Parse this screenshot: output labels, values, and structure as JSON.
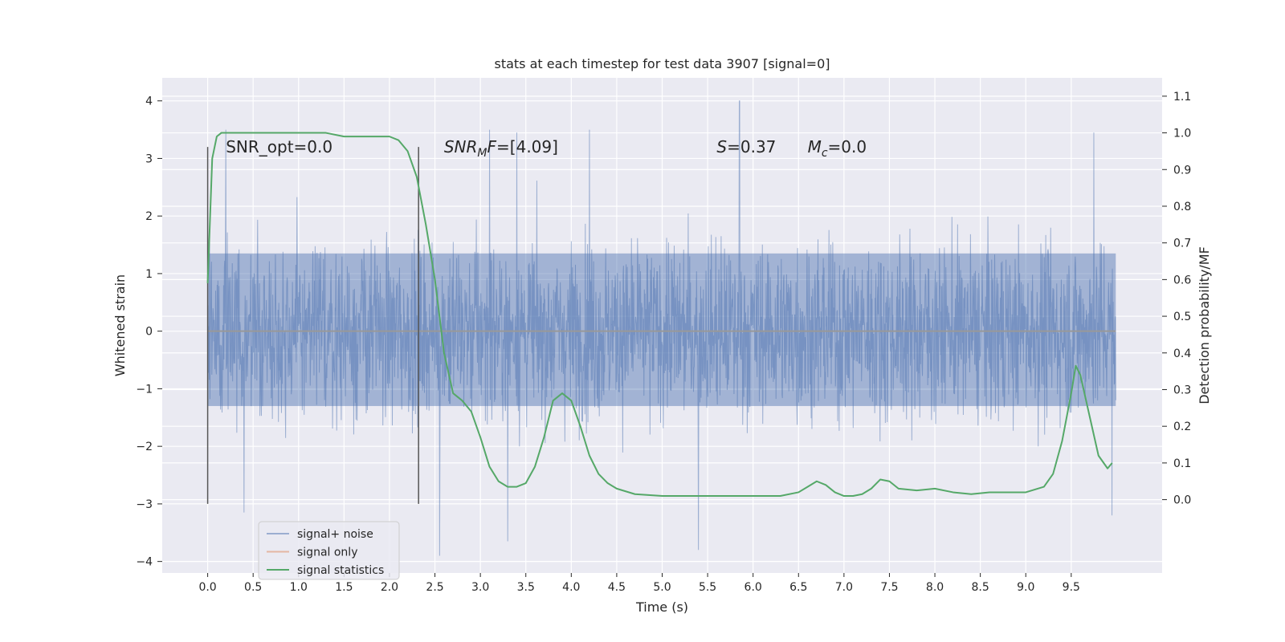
{
  "chart_data": {
    "type": "line",
    "title": "stats at each timestep for test data 3907 [signal=0]",
    "xlabel": "Time (s)",
    "ylabel": "Whitened strain",
    "y2label": "Detection probability/MF",
    "xlim": [
      -0.5,
      10.5
    ],
    "ylim": [
      -4.2,
      4.4
    ],
    "y2lim": [
      -0.2,
      1.15
    ],
    "xticks": [
      0.0,
      0.5,
      1.0,
      1.5,
      2.0,
      2.5,
      3.0,
      3.5,
      4.0,
      4.5,
      5.0,
      5.5,
      6.0,
      6.5,
      7.0,
      7.5,
      8.0,
      8.5,
      9.0,
      9.5
    ],
    "xtick_labels": [
      "0.0",
      "0.5",
      "1.0",
      "1.5",
      "2.0",
      "2.5",
      "3.0",
      "3.5",
      "4.0",
      "4.5",
      "5.0",
      "5.5",
      "6.0",
      "6.5",
      "7.0",
      "7.5",
      "8.0",
      "8.5",
      "9.0",
      "9.5"
    ],
    "yticks": [
      -4,
      -3,
      -2,
      -1,
      0,
      1,
      2,
      3,
      4
    ],
    "ytick_labels": [
      "−4",
      "−3",
      "−2",
      "−1",
      "0",
      "1",
      "2",
      "3",
      "4"
    ],
    "y2ticks": [
      0.0,
      0.1,
      0.2,
      0.3,
      0.4,
      0.5,
      0.6,
      0.7,
      0.8,
      0.9,
      1.0,
      1.1
    ],
    "y2tick_labels": [
      "0.0",
      "0.1",
      "0.2",
      "0.3",
      "0.4",
      "0.5",
      "0.6",
      "0.7",
      "0.8",
      "0.9",
      "1.0",
      "1.1"
    ],
    "grid": true,
    "legend_position": "lower-left",
    "series": [
      {
        "name": "signal+ noise",
        "axis": "left",
        "color": "#4c72b0",
        "x_range": [
          0.0,
          9.99
        ],
        "approx_band": [
          -1.3,
          1.35
        ],
        "peaks": [
          {
            "x": 0.2,
            "y": 3.5
          },
          {
            "x": 3.1,
            "y": 3.5
          },
          {
            "x": 3.4,
            "y": 3.45
          },
          {
            "x": 4.2,
            "y": 3.5
          },
          {
            "x": 5.85,
            "y": 4.05
          },
          {
            "x": 9.75,
            "y": 3.45
          },
          {
            "x": 2.55,
            "y": -3.9
          },
          {
            "x": 3.3,
            "y": -3.65
          },
          {
            "x": 5.4,
            "y": -3.8
          },
          {
            "x": 0.4,
            "y": -3.15
          },
          {
            "x": 9.95,
            "y": -3.2
          }
        ]
      },
      {
        "name": "signal only",
        "axis": "left",
        "color": "#dd8452",
        "x": [
          0.0,
          9.99
        ],
        "y": [
          0.0,
          0.0
        ]
      },
      {
        "name": "signal statistics",
        "axis": "right",
        "color": "#55a868",
        "x": [
          0.0,
          0.05,
          0.1,
          0.15,
          0.2,
          0.3,
          0.5,
          0.8,
          1.0,
          1.3,
          1.5,
          1.7,
          1.9,
          2.0,
          2.1,
          2.2,
          2.3,
          2.4,
          2.5,
          2.6,
          2.7,
          2.8,
          2.9,
          3.0,
          3.1,
          3.2,
          3.3,
          3.4,
          3.5,
          3.6,
          3.7,
          3.8,
          3.9,
          4.0,
          4.1,
          4.2,
          4.3,
          4.4,
          4.5,
          4.7,
          5.0,
          5.5,
          6.0,
          6.3,
          6.5,
          6.6,
          6.7,
          6.8,
          6.9,
          7.0,
          7.1,
          7.2,
          7.3,
          7.4,
          7.5,
          7.6,
          7.8,
          8.0,
          8.2,
          8.4,
          8.6,
          8.8,
          9.0,
          9.2,
          9.3,
          9.4,
          9.5,
          9.55,
          9.6,
          9.7,
          9.8,
          9.9,
          9.95
        ],
        "y": [
          0.59,
          0.93,
          0.99,
          1.0,
          1.0,
          1.0,
          1.0,
          1.0,
          1.0,
          1.0,
          0.99,
          0.99,
          0.99,
          0.99,
          0.98,
          0.95,
          0.88,
          0.75,
          0.6,
          0.4,
          0.29,
          0.27,
          0.24,
          0.17,
          0.09,
          0.05,
          0.035,
          0.035,
          0.045,
          0.09,
          0.17,
          0.27,
          0.29,
          0.27,
          0.2,
          0.12,
          0.07,
          0.045,
          0.03,
          0.015,
          0.01,
          0.01,
          0.01,
          0.01,
          0.02,
          0.035,
          0.05,
          0.04,
          0.02,
          0.01,
          0.01,
          0.015,
          0.03,
          0.055,
          0.05,
          0.03,
          0.025,
          0.03,
          0.02,
          0.015,
          0.02,
          0.02,
          0.02,
          0.035,
          0.07,
          0.16,
          0.29,
          0.365,
          0.34,
          0.23,
          0.12,
          0.085,
          0.1
        ]
      }
    ],
    "vlines": [
      {
        "x": 0.0,
        "ymin": -3.0,
        "ymax": 3.2,
        "color": "#555555"
      },
      {
        "x": 2.32,
        "ymin": -3.0,
        "ymax": 3.2,
        "color": "#555555"
      }
    ],
    "annotations": [
      {
        "text": "SNR_opt=0.0",
        "x": 0.2,
        "y": 3.2,
        "style": "normal"
      },
      {
        "text": "SNR",
        "sub": "M",
        "tail": "F=[4.09]",
        "x": 2.6,
        "y": 3.2,
        "style": "math"
      },
      {
        "text": "S",
        "tail": "=0.37",
        "x": 5.6,
        "y": 3.2,
        "style": "math"
      },
      {
        "text": "M",
        "sub": "c",
        "tail": "=0.0",
        "x": 6.6,
        "y": 3.2,
        "style": "math"
      }
    ]
  }
}
